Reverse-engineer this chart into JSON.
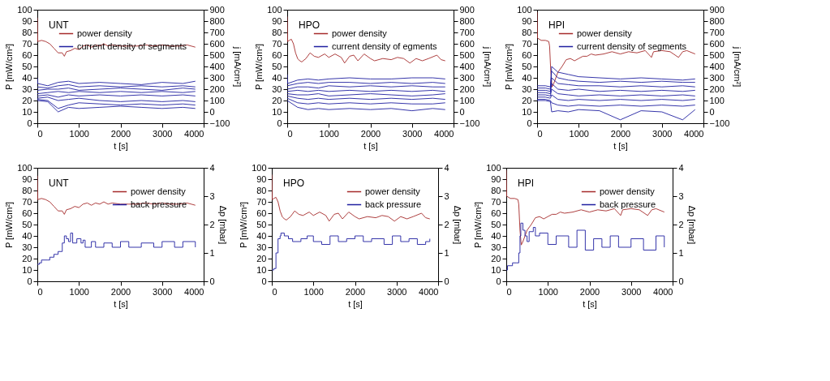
{
  "chart_data": [
    {
      "type": "line",
      "annotations": [
        "UNT"
      ],
      "xlabel": "t [s]",
      "ylabel": "P [mW/cm²]",
      "y2label": "j [mA/cm²]",
      "xlim": [
        0,
        4000
      ],
      "xticks": [
        0,
        1000,
        2000,
        3000,
        4000
      ],
      "ylim": [
        0,
        100
      ],
      "yticks": [
        0,
        10,
        20,
        30,
        40,
        50,
        60,
        70,
        80,
        90,
        100
      ],
      "y2lim": [
        -100,
        900
      ],
      "y2ticks": [
        -100,
        0,
        100,
        200,
        300,
        400,
        500,
        600,
        700,
        800,
        900
      ],
      "legend": "top right",
      "series": [
        {
          "name": "power density",
          "color": "#a52a2a",
          "x": [
            0,
            10,
            100,
            200,
            300,
            400,
            500,
            600,
            650,
            700,
            800,
            900,
            1000,
            1100,
            1200,
            1300,
            1400,
            1500,
            1600,
            1700,
            1800,
            2000,
            2200,
            2400,
            2600,
            2800,
            3000,
            3200,
            3400,
            3600,
            3800
          ],
          "values": [
            93,
            72,
            73,
            72,
            70,
            66,
            62,
            62,
            59,
            63,
            64,
            66,
            65,
            68,
            69,
            67,
            69,
            68,
            70,
            68,
            69,
            68,
            68,
            68,
            69,
            68,
            69,
            68,
            68,
            69,
            67
          ]
        },
        {
          "name": "current density of segments",
          "color": "#1f1fa0",
          "axis": "y2",
          "x": [
            0,
            10,
            250,
            500,
            750,
            1000,
            1500,
            2000,
            2500,
            3000,
            3500,
            3800
          ],
          "values": [
            300,
            250,
            230,
            260,
            270,
            250,
            260,
            250,
            240,
            260,
            250,
            270
          ]
        },
        {
          "color": "#1f1fa0",
          "axis": "y2",
          "x": [
            0,
            250,
            500,
            750,
            1000,
            1500,
            2000,
            2500,
            3000,
            3500,
            3800
          ],
          "values": [
            220,
            210,
            230,
            240,
            220,
            230,
            220,
            230,
            220,
            230,
            220
          ]
        },
        {
          "color": "#1f1fa0",
          "axis": "y2",
          "x": [
            0,
            250,
            500,
            750,
            1000,
            1500,
            2000,
            2500,
            3000,
            3500,
            3800
          ],
          "values": [
            190,
            200,
            200,
            210,
            190,
            200,
            210,
            200,
            190,
            210,
            200
          ]
        },
        {
          "color": "#1f1fa0",
          "axis": "y2",
          "x": [
            0,
            250,
            500,
            750,
            1000,
            1500,
            2000,
            2500,
            3000,
            3500,
            3800
          ],
          "values": [
            160,
            170,
            180,
            170,
            180,
            170,
            180,
            170,
            180,
            170,
            180
          ]
        },
        {
          "color": "#1f1fa0",
          "axis": "y2",
          "x": [
            0,
            250,
            500,
            750,
            1000,
            1500,
            2000,
            2500,
            3000,
            3500,
            3800
          ],
          "values": [
            140,
            150,
            130,
            150,
            140,
            150,
            140,
            150,
            140,
            150,
            140
          ]
        },
        {
          "color": "#1f1fa0",
          "axis": "y2",
          "x": [
            0,
            250,
            500,
            750,
            1000,
            1500,
            2000,
            2500,
            3000,
            3500,
            3800
          ],
          "values": [
            120,
            130,
            100,
            110,
            120,
            100,
            90,
            100,
            90,
            100,
            90
          ]
        },
        {
          "color": "#1f1fa0",
          "axis": "y2",
          "x": [
            0,
            250,
            500,
            750,
            1000,
            1500,
            2000,
            2500,
            3000,
            3500,
            3800
          ],
          "values": [
            110,
            100,
            30,
            60,
            80,
            70,
            60,
            70,
            60,
            70,
            60
          ]
        },
        {
          "color": "#1f1fa0",
          "axis": "y2",
          "x": [
            0,
            250,
            500,
            750,
            1000,
            1500,
            2000,
            2500,
            3000,
            3500,
            3800
          ],
          "values": [
            100,
            90,
            0,
            40,
            30,
            40,
            50,
            40,
            30,
            40,
            30
          ]
        }
      ]
    },
    {
      "type": "line",
      "annotations": [
        "HPO"
      ],
      "xlabel": "t [s]",
      "ylabel": "P [mW/cm²]",
      "y2label": "j [mA/cm²]",
      "xlim": [
        0,
        4000
      ],
      "xticks": [
        0,
        1000,
        2000,
        3000,
        4000
      ],
      "ylim": [
        0,
        100
      ],
      "yticks": [
        0,
        10,
        20,
        30,
        40,
        50,
        60,
        70,
        80,
        90,
        100
      ],
      "y2lim": [
        -100,
        900
      ],
      "y2ticks": [
        -100,
        0,
        100,
        200,
        300,
        400,
        500,
        600,
        700,
        800,
        900
      ],
      "legend": "top right",
      "series": [
        {
          "name": "power density",
          "color": "#a52a2a",
          "x": [
            0,
            10,
            50,
            100,
            150,
            200,
            250,
            300,
            350,
            450,
            550,
            650,
            750,
            900,
            1000,
            1150,
            1300,
            1380,
            1500,
            1600,
            1700,
            1850,
            2000,
            2100,
            2300,
            2500,
            2650,
            2800,
            2950,
            3100,
            3250,
            3400,
            3600,
            3700,
            3800
          ],
          "values": [
            94,
            72,
            73,
            74,
            70,
            62,
            57,
            55,
            54,
            57,
            62,
            59,
            58,
            61,
            58,
            61,
            58,
            53,
            59,
            60,
            55,
            61,
            57,
            55,
            57,
            56,
            58,
            57,
            53,
            57,
            55,
            57,
            60,
            56,
            55
          ]
        },
        {
          "name": "current density of egments",
          "color": "#1f1fa0",
          "axis": "y2",
          "x": [
            0,
            10,
            250,
            500,
            750,
            1000,
            1500,
            2000,
            2500,
            3000,
            3500,
            3800
          ],
          "values": [
            330,
            250,
            280,
            290,
            280,
            290,
            300,
            290,
            290,
            300,
            300,
            290
          ]
        },
        {
          "color": "#1f1fa0",
          "axis": "y2",
          "x": [
            0,
            250,
            500,
            750,
            1000,
            1500,
            2000,
            2500,
            3000,
            3500,
            3800
          ],
          "values": [
            230,
            250,
            260,
            250,
            260,
            260,
            250,
            260,
            250,
            260,
            250
          ]
        },
        {
          "color": "#1f1fa0",
          "axis": "y2",
          "x": [
            0,
            250,
            500,
            750,
            1000,
            1500,
            2000,
            2500,
            3000,
            3500,
            3800
          ],
          "values": [
            200,
            220,
            220,
            210,
            230,
            220,
            230,
            220,
            230,
            220,
            220
          ]
        },
        {
          "color": "#1f1fa0",
          "axis": "y2",
          "x": [
            0,
            250,
            500,
            750,
            1000,
            1500,
            2000,
            2500,
            3000,
            3500,
            3800
          ],
          "values": [
            180,
            190,
            180,
            190,
            180,
            190,
            180,
            190,
            180,
            190,
            180
          ]
        },
        {
          "color": "#1f1fa0",
          "axis": "y2",
          "x": [
            0,
            250,
            500,
            750,
            1000,
            1500,
            2000,
            2500,
            3000,
            3500,
            3800
          ],
          "values": [
            160,
            150,
            150,
            160,
            140,
            150,
            160,
            150,
            140,
            150,
            160
          ]
        },
        {
          "color": "#1f1fa0",
          "axis": "y2",
          "x": [
            0,
            250,
            500,
            750,
            1000,
            1500,
            2000,
            2500,
            3000,
            3500,
            3800
          ],
          "values": [
            140,
            120,
            110,
            120,
            110,
            120,
            110,
            120,
            110,
            120,
            110
          ]
        },
        {
          "color": "#1f1fa0",
          "axis": "y2",
          "x": [
            0,
            250,
            500,
            750,
            1000,
            1500,
            2000,
            2500,
            3000,
            3500,
            3800
          ],
          "values": [
            120,
            80,
            70,
            80,
            70,
            80,
            70,
            80,
            70,
            70,
            80
          ]
        },
        {
          "color": "#1f1fa0",
          "axis": "y2",
          "x": [
            0,
            250,
            500,
            750,
            1000,
            1500,
            2000,
            2500,
            3000,
            3500,
            3800
          ],
          "values": [
            100,
            40,
            20,
            30,
            20,
            30,
            20,
            30,
            10,
            30,
            20
          ]
        }
      ]
    },
    {
      "type": "line",
      "annotations": [
        "HPI"
      ],
      "xlabel": "t [s]",
      "ylabel": "P [mW/cm²]",
      "y2label": "j [mA/cm²]",
      "xlim": [
        0,
        4000
      ],
      "xticks": [
        0,
        1000,
        2000,
        3000,
        4000
      ],
      "ylim": [
        0,
        100
      ],
      "yticks": [
        0,
        10,
        20,
        30,
        40,
        50,
        60,
        70,
        80,
        90,
        100
      ],
      "y2lim": [
        -100,
        900
      ],
      "y2ticks": [
        -100,
        0,
        100,
        200,
        300,
        400,
        500,
        600,
        700,
        800,
        900
      ],
      "legend": "top right",
      "series": [
        {
          "name": "power density",
          "color": "#a52a2a",
          "x": [
            0,
            10,
            100,
            200,
            280,
            300,
            330,
            360,
            400,
            450,
            500,
            600,
            700,
            800,
            900,
            1000,
            1100,
            1200,
            1300,
            1400,
            1600,
            1800,
            2000,
            2200,
            2400,
            2600,
            2750,
            2800,
            3000,
            3200,
            3400,
            3500,
            3600,
            3800
          ],
          "values": [
            98,
            75,
            73,
            73,
            72,
            68,
            45,
            32,
            35,
            40,
            45,
            50,
            56,
            57,
            55,
            57,
            59,
            59,
            61,
            60,
            61,
            63,
            61,
            63,
            62,
            64,
            58,
            63,
            64,
            63,
            58,
            63,
            64,
            61
          ]
        },
        {
          "name": "current density of segments",
          "color": "#1f1fa0",
          "axis": "y2",
          "x": [
            0,
            200,
            320,
            350,
            500,
            750,
            1000,
            1500,
            2000,
            2500,
            3000,
            3500,
            3800
          ],
          "values": [
            230,
            230,
            220,
            400,
            350,
            330,
            310,
            300,
            290,
            300,
            290,
            280,
            290
          ]
        },
        {
          "color": "#1f1fa0",
          "axis": "y2",
          "x": [
            0,
            200,
            320,
            350,
            500,
            750,
            1000,
            1500,
            2000,
            2500,
            3000,
            3500,
            3800
          ],
          "values": [
            210,
            210,
            200,
            360,
            300,
            280,
            270,
            260,
            270,
            260,
            270,
            260,
            260
          ]
        },
        {
          "color": "#1f1fa0",
          "axis": "y2",
          "x": [
            0,
            200,
            320,
            350,
            500,
            750,
            1000,
            1500,
            2000,
            2500,
            3000,
            3500,
            3800
          ],
          "values": [
            190,
            190,
            180,
            300,
            250,
            240,
            230,
            230,
            220,
            230,
            220,
            230,
            220
          ]
        },
        {
          "color": "#1f1fa0",
          "axis": "y2",
          "x": [
            0,
            200,
            320,
            350,
            500,
            750,
            1000,
            1500,
            2000,
            2500,
            3000,
            3500,
            3800
          ],
          "values": [
            170,
            170,
            160,
            250,
            200,
            190,
            200,
            180,
            190,
            180,
            190,
            180,
            190
          ]
        },
        {
          "color": "#1f1fa0",
          "axis": "y2",
          "x": [
            0,
            200,
            320,
            350,
            500,
            750,
            1000,
            1500,
            2000,
            2500,
            3000,
            3500,
            3800
          ],
          "values": [
            150,
            150,
            140,
            200,
            160,
            150,
            140,
            150,
            140,
            150,
            140,
            150,
            140
          ]
        },
        {
          "color": "#1f1fa0",
          "axis": "y2",
          "x": [
            0,
            200,
            320,
            350,
            500,
            750,
            1000,
            1500,
            2000,
            2500,
            3000,
            3500,
            3800
          ],
          "values": [
            130,
            130,
            120,
            150,
            110,
            100,
            110,
            100,
            110,
            100,
            110,
            100,
            110
          ]
        },
        {
          "color": "#1f1fa0",
          "axis": "y2",
          "x": [
            0,
            200,
            320,
            350,
            500,
            750,
            1000,
            1500,
            2000,
            2500,
            3000,
            3500,
            3800
          ],
          "values": [
            110,
            110,
            100,
            80,
            60,
            50,
            60,
            50,
            60,
            50,
            60,
            50,
            60
          ]
        },
        {
          "color": "#1f1fa0",
          "axis": "y2",
          "x": [
            0,
            200,
            320,
            350,
            500,
            750,
            1000,
            1500,
            2000,
            2500,
            3000,
            3500,
            3800
          ],
          "values": [
            100,
            100,
            90,
            0,
            10,
            0,
            20,
            10,
            -70,
            10,
            0,
            -70,
            20
          ]
        }
      ]
    },
    {
      "type": "line",
      "annotations": [
        "UNT"
      ],
      "xlabel": "t [s]",
      "ylabel": "P [mW/cm²]",
      "y2label": "Δp [mbar]",
      "xlim": [
        0,
        4000
      ],
      "xticks": [
        0,
        1000,
        2000,
        3000,
        4000
      ],
      "ylim": [
        0,
        100
      ],
      "yticks": [
        0,
        10,
        20,
        30,
        40,
        50,
        60,
        70,
        80,
        90,
        100
      ],
      "y2lim": [
        0,
        4
      ],
      "y2ticks": [
        0,
        1,
        2,
        3,
        4
      ],
      "legend": "top right",
      "series": [
        {
          "name": "power density",
          "color": "#a52a2a",
          "x": [
            0,
            10,
            100,
            200,
            300,
            400,
            500,
            600,
            650,
            700,
            800,
            900,
            1000,
            1100,
            1200,
            1300,
            1400,
            1500,
            1600,
            1700,
            1800,
            2000,
            2200,
            2400,
            2600,
            2800,
            3000,
            3200,
            3400,
            3600,
            3800
          ],
          "values": [
            93,
            72,
            73,
            72,
            70,
            66,
            62,
            62,
            59,
            63,
            64,
            66,
            65,
            68,
            69,
            67,
            69,
            68,
            70,
            68,
            69,
            68,
            68,
            68,
            69,
            68,
            69,
            68,
            68,
            69,
            67
          ]
        },
        {
          "name": "back pressure",
          "color": "#1f1fa0",
          "axis": "y2",
          "type": "step",
          "x": [
            0,
            50,
            100,
            250,
            300,
            400,
            500,
            600,
            650,
            700,
            750,
            800,
            850,
            950,
            1050,
            1100,
            1150,
            1300,
            1400,
            1600,
            1800,
            2000,
            2200,
            2500,
            2800,
            3000,
            3300,
            3500,
            3800
          ],
          "values": [
            0.6,
            0.65,
            0.75,
            0.75,
            0.85,
            0.95,
            1.05,
            1.35,
            1.6,
            1.5,
            1.4,
            1.7,
            1.35,
            1.5,
            1.35,
            1.45,
            1.2,
            1.4,
            1.2,
            1.35,
            1.2,
            1.4,
            1.2,
            1.35,
            1.2,
            1.4,
            1.2,
            1.4,
            1.2
          ]
        }
      ]
    },
    {
      "type": "line",
      "annotations": [
        "HPO"
      ],
      "xlabel": "t [s]",
      "ylabel": "P [mW/cm²]",
      "y2label": "Δp [mbar]",
      "xlim": [
        0,
        4000
      ],
      "xticks": [
        0,
        1000,
        2000,
        3000,
        4000
      ],
      "ylim": [
        0,
        100
      ],
      "yticks": [
        0,
        10,
        20,
        30,
        40,
        50,
        60,
        70,
        80,
        90,
        100
      ],
      "y2lim": [
        0,
        4
      ],
      "y2ticks": [
        0,
        1,
        2,
        3,
        4
      ],
      "legend": "top right",
      "series": [
        {
          "name": "power density",
          "color": "#a52a2a",
          "x": [
            0,
            10,
            50,
            100,
            150,
            200,
            250,
            300,
            350,
            450,
            550,
            650,
            750,
            900,
            1000,
            1150,
            1300,
            1380,
            1500,
            1600,
            1700,
            1850,
            2000,
            2100,
            2300,
            2500,
            2650,
            2800,
            2950,
            3100,
            3250,
            3400,
            3600,
            3700,
            3800
          ],
          "values": [
            94,
            72,
            73,
            74,
            70,
            62,
            57,
            55,
            54,
            57,
            62,
            59,
            58,
            61,
            58,
            61,
            58,
            53,
            59,
            60,
            55,
            61,
            57,
            55,
            57,
            56,
            58,
            57,
            53,
            57,
            55,
            57,
            60,
            56,
            55
          ]
        },
        {
          "name": "back pressure",
          "color": "#1f1fa0",
          "axis": "y2",
          "type": "step",
          "x": [
            0,
            50,
            100,
            150,
            200,
            220,
            300,
            400,
            500,
            700,
            850,
            1000,
            1200,
            1400,
            1600,
            1800,
            2000,
            2200,
            2400,
            2700,
            2900,
            3100,
            3300,
            3500,
            3700,
            3800
          ],
          "values": [
            0.4,
            0.45,
            1.0,
            1.5,
            1.6,
            1.7,
            1.6,
            1.5,
            1.4,
            1.5,
            1.6,
            1.4,
            1.3,
            1.6,
            1.4,
            1.5,
            1.6,
            1.4,
            1.5,
            1.3,
            1.6,
            1.4,
            1.5,
            1.3,
            1.4,
            1.5
          ]
        }
      ]
    },
    {
      "type": "line",
      "annotations": [
        "HPI"
      ],
      "xlabel": "t [s]",
      "ylabel": "P [mW/cm²]",
      "y2label": "Δp [mbar]",
      "xlim": [
        0,
        4000
      ],
      "xticks": [
        0,
        1000,
        2000,
        3000,
        4000
      ],
      "ylim": [
        0,
        100
      ],
      "yticks": [
        0,
        10,
        20,
        30,
        40,
        50,
        60,
        70,
        80,
        90,
        100
      ],
      "y2lim": [
        0,
        4
      ],
      "y2ticks": [
        0,
        1,
        2,
        3,
        4
      ],
      "legend": "top right",
      "series": [
        {
          "name": "power density",
          "color": "#a52a2a",
          "x": [
            0,
            10,
            100,
            200,
            280,
            300,
            330,
            360,
            400,
            450,
            500,
            600,
            700,
            800,
            900,
            1000,
            1100,
            1200,
            1300,
            1400,
            1600,
            1800,
            2000,
            2200,
            2400,
            2600,
            2750,
            2800,
            3000,
            3200,
            3400,
            3500,
            3600,
            3800
          ],
          "values": [
            98,
            75,
            73,
            73,
            72,
            68,
            45,
            32,
            35,
            40,
            45,
            50,
            56,
            57,
            55,
            57,
            59,
            59,
            61,
            60,
            61,
            63,
            61,
            63,
            62,
            64,
            58,
            63,
            64,
            63,
            58,
            63,
            64,
            61
          ]
        },
        {
          "name": "back pressure",
          "color": "#1f1fa0",
          "axis": "y2",
          "type": "step",
          "x": [
            0,
            30,
            150,
            250,
            300,
            330,
            350,
            400,
            450,
            500,
            550,
            650,
            700,
            800,
            1000,
            1200,
            1500,
            1700,
            1900,
            2100,
            2300,
            2500,
            2700,
            3000,
            3300,
            3600,
            3800
          ],
          "values": [
            0.4,
            0.55,
            0.65,
            0.65,
            1.0,
            1.6,
            2.05,
            1.8,
            1.6,
            1.4,
            1.75,
            1.9,
            1.6,
            1.7,
            1.3,
            1.6,
            1.2,
            1.8,
            1.1,
            1.5,
            1.2,
            1.6,
            1.2,
            1.5,
            1.1,
            1.6,
            1.2
          ]
        }
      ]
    }
  ]
}
